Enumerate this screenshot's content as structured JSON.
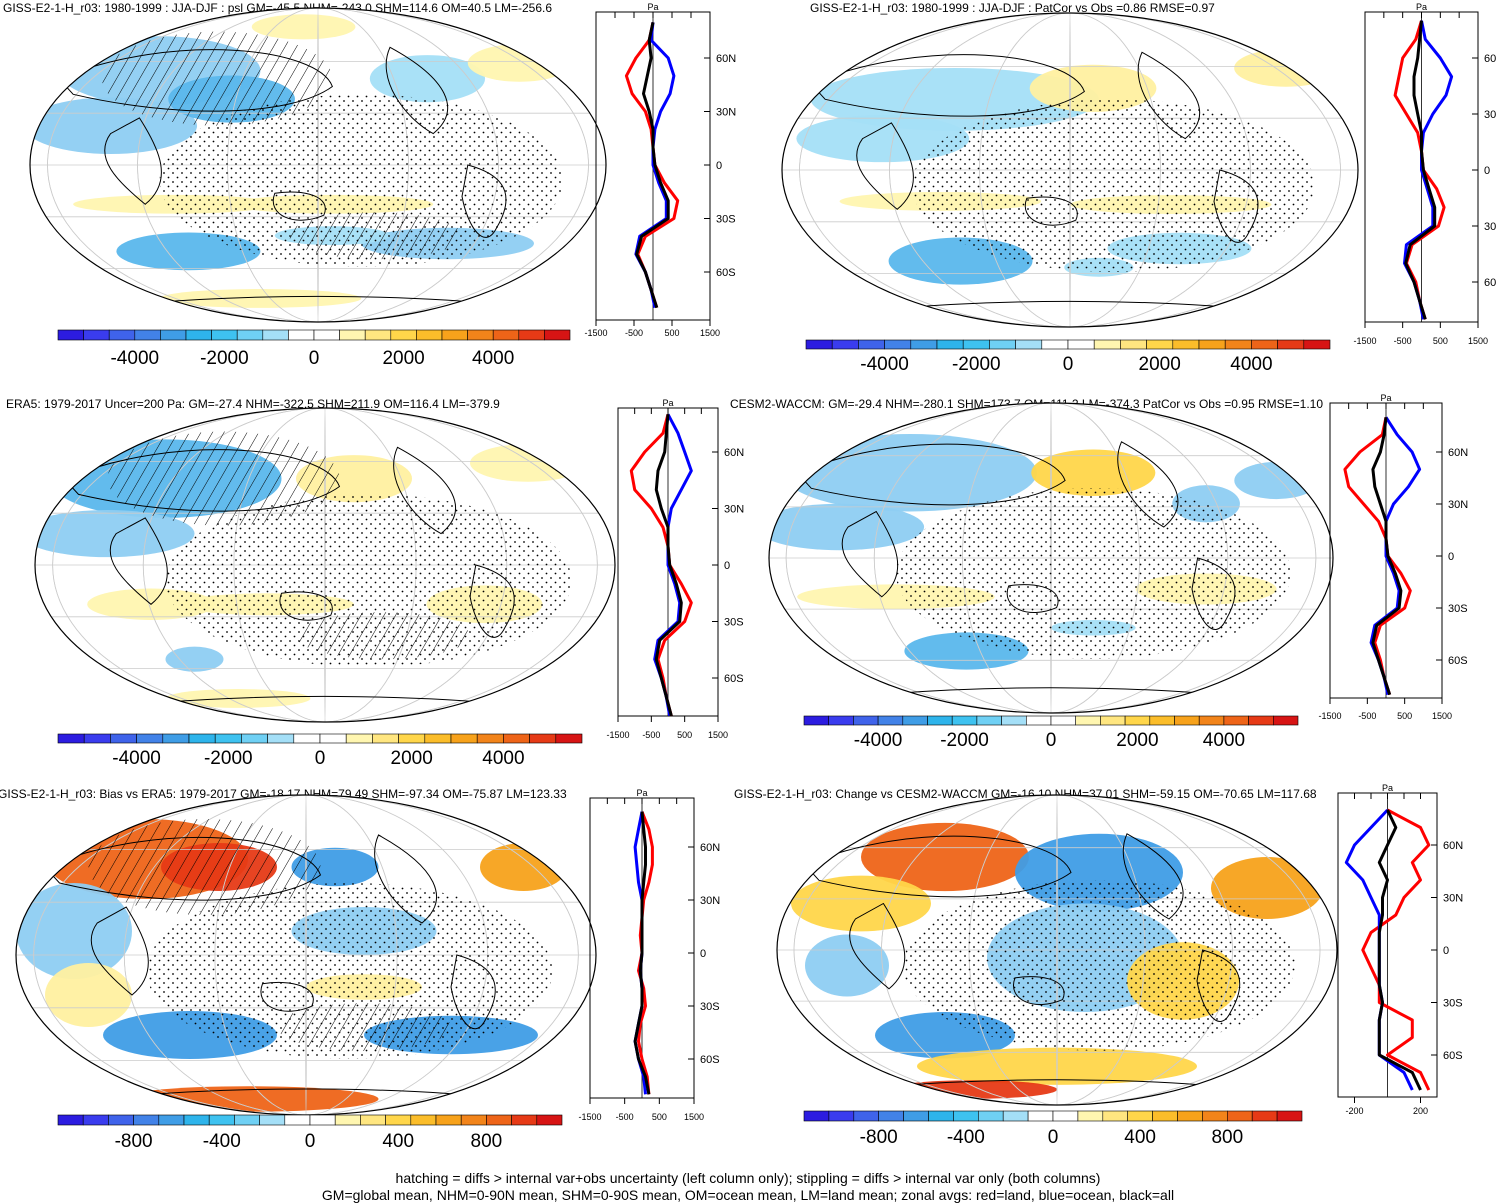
{
  "chart_data": {
    "type": "map_panels",
    "panels": [
      {
        "id": "p1",
        "title": "GISS-E2-1-H_r03: 1980-1999 : JJA-DJF : psl GM=-45.5 NHM=-243.0 SHM=114.6 OM=40.5 LM=-256.6",
        "colorbar_labels": [
          "-4000",
          "-2000",
          "0",
          "2000",
          "4000"
        ],
        "profile_xlim": [
          -1500,
          1500
        ],
        "profile_xticks": [
          "-1500",
          "-500",
          "500",
          "1500"
        ],
        "profile_unit": "Pa",
        "profile_lat_labels": [
          "60N",
          "30N",
          "0",
          "30S",
          "60S"
        ],
        "zonal_series": [
          {
            "name": "land",
            "lat": [
              80,
              70,
              60,
              50,
              40,
              30,
              20,
              10,
              0,
              -10,
              -20,
              -30,
              -40,
              -50,
              -60,
              -70,
              -80
            ],
            "values": [
              0,
              -100,
              -450,
              -700,
              -550,
              -200,
              -50,
              0,
              50,
              300,
              650,
              550,
              -200,
              -400,
              -200,
              -50,
              100
            ]
          },
          {
            "name": "ocean",
            "lat": [
              80,
              70,
              60,
              50,
              40,
              30,
              20,
              10,
              0,
              -10,
              -20,
              -30,
              -40,
              -50,
              -60,
              -70,
              -80
            ],
            "values": [
              0,
              -50,
              400,
              550,
              450,
              200,
              50,
              0,
              0,
              150,
              350,
              350,
              -350,
              -450,
              -200,
              -50,
              50
            ]
          },
          {
            "name": "all",
            "lat": [
              80,
              70,
              60,
              50,
              40,
              30,
              20,
              10,
              0,
              -10,
              -20,
              -30,
              -40,
              -50,
              -60,
              -70,
              -80
            ],
            "values": [
              0,
              -100,
              -50,
              -150,
              -250,
              -100,
              0,
              0,
              50,
              200,
              400,
              400,
              -300,
              -430,
              -200,
              -50,
              100
            ]
          }
        ]
      },
      {
        "id": "p2",
        "title": "GISS-E2-1-H_r03: 1980-1999 : JJA-DJF : PatCor vs Obs =0.86 RMSE=0.97",
        "colorbar_labels": [
          "-4000",
          "-2000",
          "0",
          "2000",
          "4000"
        ],
        "profile_xlim": [
          -1500,
          1500
        ],
        "profile_xticks": [
          "-1500",
          "-500",
          "500",
          "1500"
        ],
        "profile_unit": "Pa",
        "profile_lat_labels": [
          "60",
          "30",
          "0",
          "30",
          "60"
        ],
        "zonal_series": [
          {
            "name": "land",
            "lat": [
              80,
              70,
              60,
              50,
              40,
              30,
              20,
              10,
              0,
              -10,
              -20,
              -30,
              -40,
              -50,
              -60,
              -70,
              -80
            ],
            "values": [
              0,
              -150,
              -500,
              -600,
              -700,
              -400,
              -100,
              0,
              50,
              400,
              600,
              450,
              -250,
              -400,
              -150,
              -50,
              100
            ]
          },
          {
            "name": "ocean",
            "lat": [
              80,
              70,
              60,
              50,
              40,
              30,
              20,
              10,
              0,
              -10,
              -20,
              -30,
              -40,
              -50,
              -60,
              -70,
              -80
            ],
            "values": [
              0,
              100,
              500,
              800,
              650,
              300,
              50,
              0,
              0,
              150,
              300,
              300,
              -400,
              -450,
              -200,
              -50,
              50
            ]
          },
          {
            "name": "all",
            "lat": [
              80,
              70,
              60,
              50,
              40,
              30,
              20,
              10,
              0,
              -10,
              -20,
              -30,
              -40,
              -50,
              -60,
              -70,
              -80
            ],
            "values": [
              0,
              -50,
              -100,
              -200,
              -200,
              -100,
              0,
              0,
              50,
              200,
              350,
              350,
              -300,
              -420,
              -200,
              -50,
              100
            ]
          }
        ]
      },
      {
        "id": "p3",
        "title": "ERA5: 1979-2017 Uncer=200 Pa: GM=-27.4 NHM=-322.5 SHM=211.9 OM=116.4 LM=-379.9",
        "colorbar_labels": [
          "-4000",
          "-2000",
          "0",
          "2000",
          "4000"
        ],
        "profile_xlim": [
          -1500,
          1500
        ],
        "profile_xticks": [
          "-1500",
          "-500",
          "500",
          "1500"
        ],
        "profile_unit": "Pa",
        "profile_lat_labels": [
          "60N",
          "30N",
          "0",
          "30S",
          "60S"
        ],
        "zonal_series": [
          {
            "name": "land",
            "lat": [
              80,
              70,
              60,
              50,
              40,
              30,
              20,
              10,
              0,
              -10,
              -20,
              -30,
              -40,
              -50,
              -60,
              -70,
              -80
            ],
            "values": [
              0,
              -150,
              -700,
              -1100,
              -1000,
              -500,
              -150,
              0,
              50,
              400,
              700,
              500,
              -100,
              -300,
              -150,
              -50,
              100
            ]
          },
          {
            "name": "ocean",
            "lat": [
              80,
              70,
              60,
              50,
              40,
              30,
              20,
              10,
              0,
              -10,
              -20,
              -30,
              -40,
              -50,
              -60,
              -70,
              -80
            ],
            "values": [
              0,
              300,
              500,
              700,
              400,
              100,
              0,
              0,
              0,
              200,
              350,
              300,
              -300,
              -400,
              -200,
              -50,
              50
            ]
          },
          {
            "name": "all",
            "lat": [
              80,
              70,
              60,
              50,
              40,
              30,
              20,
              10,
              0,
              -10,
              -20,
              -30,
              -40,
              -50,
              -60,
              -70,
              -80
            ],
            "values": [
              0,
              -50,
              -100,
              -300,
              -350,
              -200,
              0,
              0,
              50,
              250,
              400,
              350,
              -250,
              -350,
              -200,
              -50,
              100
            ]
          }
        ]
      },
      {
        "id": "p4",
        "title": "CESM2-WACCM: GM=-29.4 NHM=-280.1 SHM=173.7 OM=111.2 LM=-374.3 PatCor vs Obs =0.95 RMSE=1.10",
        "colorbar_labels": [
          "-4000",
          "-2000",
          "0",
          "2000",
          "4000"
        ],
        "profile_xlim": [
          -1500,
          1500
        ],
        "profile_xticks": [
          "-1500",
          "-500",
          "500",
          "1500"
        ],
        "profile_unit": "Pa",
        "profile_lat_labels": [
          "60N",
          "30N",
          "0",
          "30S",
          "60S"
        ],
        "zonal_series": [
          {
            "name": "land",
            "lat": [
              80,
              70,
              60,
              50,
              40,
              30,
              20,
              10,
              0,
              -10,
              -20,
              -30,
              -40,
              -50,
              -60,
              -70,
              -80
            ],
            "values": [
              0,
              -100,
              -700,
              -1100,
              -1000,
              -600,
              -200,
              0,
              50,
              400,
              650,
              500,
              -150,
              -300,
              -150,
              -50,
              100
            ]
          },
          {
            "name": "ocean",
            "lat": [
              80,
              70,
              60,
              50,
              40,
              30,
              20,
              10,
              0,
              -10,
              -20,
              -30,
              -40,
              -50,
              -60,
              -70,
              -80
            ],
            "values": [
              0,
              300,
              700,
              900,
              600,
              200,
              0,
              0,
              0,
              200,
              350,
              300,
              -300,
              -400,
              -200,
              -50,
              50
            ]
          },
          {
            "name": "all",
            "lat": [
              80,
              70,
              60,
              50,
              40,
              30,
              20,
              10,
              0,
              -10,
              -20,
              -30,
              -40,
              -50,
              -60,
              -70,
              -80
            ],
            "values": [
              0,
              -50,
              -150,
              -350,
              -300,
              -150,
              0,
              0,
              50,
              250,
              400,
              350,
              -250,
              -350,
              -200,
              -50,
              100
            ]
          }
        ]
      },
      {
        "id": "p5",
        "title": "GISS-E2-1-H_r03: Bias vs ERA5: 1979-2017 GM=-18.17 NHM=79.49 SHM=-97.34 OM=-75.87 LM=123.33",
        "colorbar_labels": [
          "-800",
          "-400",
          "0",
          "400",
          "800"
        ],
        "profile_xlim": [
          -1500,
          1500
        ],
        "profile_xticks": [
          "-1500",
          "-500",
          "500",
          "1500"
        ],
        "profile_unit": "Pa",
        "profile_lat_labels": [
          "60N",
          "30N",
          "0",
          "30S",
          "60S"
        ],
        "zonal_series": [
          {
            "name": "land",
            "lat": [
              80,
              70,
              60,
              50,
              40,
              30,
              20,
              10,
              0,
              -10,
              -20,
              -30,
              -40,
              -50,
              -60,
              -70,
              -80
            ],
            "values": [
              0,
              200,
              300,
              300,
              200,
              50,
              0,
              -50,
              0,
              -100,
              50,
              100,
              -50,
              -100,
              0,
              150,
              200
            ]
          },
          {
            "name": "ocean",
            "lat": [
              80,
              70,
              60,
              50,
              40,
              30,
              20,
              10,
              0,
              -10,
              -20,
              -30,
              -40,
              -50,
              -60,
              -70,
              -80
            ],
            "values": [
              0,
              -100,
              -200,
              -150,
              -100,
              0,
              0,
              0,
              0,
              -50,
              0,
              0,
              -100,
              -200,
              -100,
              50,
              100
            ]
          },
          {
            "name": "all",
            "lat": [
              80,
              70,
              60,
              50,
              40,
              30,
              20,
              10,
              0,
              -10,
              -20,
              -30,
              -40,
              -50,
              -60,
              -70,
              -80
            ],
            "values": [
              0,
              50,
              100,
              100,
              50,
              0,
              0,
              0,
              0,
              -50,
              0,
              0,
              -100,
              -200,
              -100,
              100,
              200
            ]
          }
        ]
      },
      {
        "id": "p6",
        "title": "GISS-E2-1-H_r03: Change vs CESM2-WACCM GM=-16.10 NHM=37.01 SHM=-59.15 OM=-70.65 LM=117.68",
        "colorbar_labels": [
          "-800",
          "-400",
          "0",
          "400",
          "800"
        ],
        "profile_xlim": [
          -300,
          300
        ],
        "profile_xticks": [
          "-200",
          "200"
        ],
        "profile_unit": "Pa",
        "profile_lat_labels": [
          "60N",
          "30N",
          "0",
          "30S",
          "60S"
        ],
        "zonal_series": [
          {
            "name": "land",
            "lat": [
              80,
              70,
              60,
              50,
              40,
              30,
              20,
              10,
              0,
              -10,
              -20,
              -30,
              -40,
              -50,
              -60,
              -70,
              -80
            ],
            "values": [
              0,
              200,
              250,
              150,
              200,
              100,
              50,
              -100,
              -150,
              -100,
              -50,
              -50,
              150,
              150,
              0,
              200,
              250
            ]
          },
          {
            "name": "ocean",
            "lat": [
              80,
              70,
              60,
              50,
              40,
              30,
              20,
              10,
              0,
              -10,
              -20,
              -30,
              -40,
              -50,
              -60,
              -70,
              -80
            ],
            "values": [
              0,
              -100,
              -200,
              -250,
              -150,
              -100,
              -50,
              -50,
              -50,
              -50,
              -50,
              -30,
              -50,
              -50,
              -50,
              100,
              150
            ]
          },
          {
            "name": "all",
            "lat": [
              80,
              70,
              60,
              50,
              40,
              30,
              20,
              10,
              0,
              -10,
              -20,
              -30,
              -40,
              -50,
              -60,
              -70,
              -80
            ],
            "values": [
              0,
              50,
              0,
              -50,
              0,
              -30,
              -30,
              -50,
              -50,
              -50,
              -50,
              -30,
              -50,
              -50,
              -50,
              150,
              200
            ]
          }
        ]
      }
    ],
    "colors": {
      "land": "#ff0000",
      "ocean": "#0000ff",
      "all": "#000000"
    },
    "footnote": [
      "hatching = diffs > internal var+obs uncertainty (left column only); stippling = diffs > internal var only (both columns)",
      "GM=global mean, NHM=0-90N mean, SHM=0-90S mean, OM=ocean mean, LM=land mean; zonal avgs: red=land, blue=ocean, black=all"
    ]
  }
}
